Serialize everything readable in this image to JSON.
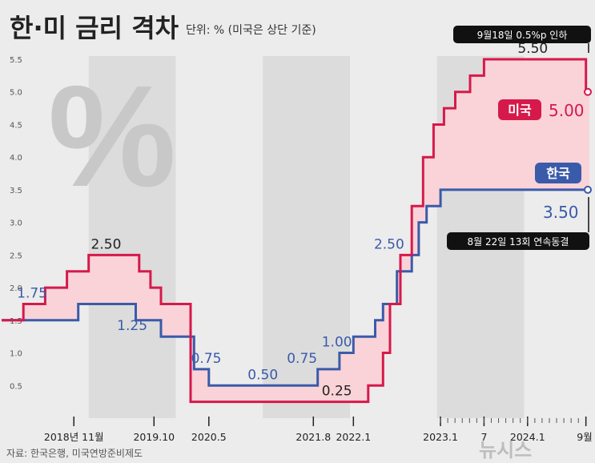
{
  "header": {
    "title": "한·미 금리 격차",
    "unit": "단위: % (미국은 상단 기준)"
  },
  "source": "자료: 한국은행, 미국연방준비제도",
  "watermark": "뉴시스",
  "colors": {
    "us": "#d6194b",
    "kr": "#3a5ba9",
    "gap_fill": "#f9d3d8",
    "band": "#dcdcdc",
    "background": "#ececec"
  },
  "chart_data": {
    "type": "line",
    "title": "한·미 금리 격차",
    "subtitle": "단위: % (미국은 상단 기준)",
    "ylim": [
      0,
      5.5
    ],
    "y_ticks": [
      "0.5",
      "1.0",
      "1.5",
      "2.0",
      "2.5",
      "3.0",
      "3.5",
      "4.0",
      "4.5",
      "5.0",
      "5.5"
    ],
    "x_tick_labels": [
      {
        "label": "2018년 11월",
        "x": 2018.83
      },
      {
        "label": "2019.10",
        "x": 2019.75
      },
      {
        "label": "2020.5",
        "x": 2020.38
      },
      {
        "label": "2021.8",
        "x": 2021.58
      },
      {
        "label": "2022.1",
        "x": 2022.04
      },
      {
        "label": "2023.1",
        "x": 2023.04
      },
      {
        "label": "7",
        "x": 2023.54
      },
      {
        "label": "2024.1",
        "x": 2024.04
      },
      {
        "label": "9월",
        "x": 2024.71
      }
    ],
    "series": [
      {
        "name": "미국",
        "step_points": [
          [
            2018.0,
            1.5
          ],
          [
            2018.25,
            1.75
          ],
          [
            2018.5,
            2.0
          ],
          [
            2018.75,
            2.25
          ],
          [
            2019.0,
            2.5
          ],
          [
            2019.58,
            2.25
          ],
          [
            2019.71,
            2.0
          ],
          [
            2019.83,
            1.75
          ],
          [
            2020.17,
            0.25
          ],
          [
            2022.21,
            0.5
          ],
          [
            2022.38,
            1.0
          ],
          [
            2022.46,
            1.75
          ],
          [
            2022.58,
            2.5
          ],
          [
            2022.71,
            3.25
          ],
          [
            2022.84,
            4.0
          ],
          [
            2022.96,
            4.5
          ],
          [
            2023.08,
            4.75
          ],
          [
            2023.21,
            5.0
          ],
          [
            2023.38,
            5.25
          ],
          [
            2023.54,
            5.5
          ],
          [
            2024.71,
            5.0
          ],
          [
            2024.75,
            5.0
          ]
        ],
        "labels": [
          {
            "text": "2.50",
            "x": 2019.2,
            "y": 2.5
          },
          {
            "text": "0.25",
            "x": 2021.85,
            "y": 0.25
          },
          {
            "text": "5.50",
            "x": 2024.1,
            "y": 5.5
          }
        ],
        "legend_label": "미국",
        "final_value": "5.00",
        "final_annotation": "9월18일 0.5%p 인하"
      },
      {
        "name": "한국",
        "step_points": [
          [
            2018.0,
            1.5
          ],
          [
            2018.88,
            1.75
          ],
          [
            2019.54,
            1.5
          ],
          [
            2019.83,
            1.25
          ],
          [
            2020.21,
            0.75
          ],
          [
            2020.38,
            0.5
          ],
          [
            2021.63,
            0.75
          ],
          [
            2021.88,
            1.0
          ],
          [
            2022.04,
            1.25
          ],
          [
            2022.29,
            1.5
          ],
          [
            2022.38,
            1.75
          ],
          [
            2022.54,
            2.25
          ],
          [
            2022.71,
            2.5
          ],
          [
            2022.79,
            3.0
          ],
          [
            2022.88,
            3.25
          ],
          [
            2023.04,
            3.5
          ],
          [
            2024.75,
            3.5
          ]
        ],
        "labels": [
          {
            "text": "1.75",
            "x": 2018.35,
            "y": 1.75
          },
          {
            "text": "1.25",
            "x": 2019.5,
            "y": 1.25
          },
          {
            "text": "0.75",
            "x": 2020.35,
            "y": 0.75
          },
          {
            "text": "0.50",
            "x": 2021.0,
            "y": 0.5
          },
          {
            "text": "0.75",
            "x": 2021.45,
            "y": 0.75
          },
          {
            "text": "1.00",
            "x": 2021.85,
            "y": 1.0
          },
          {
            "text": "2.50",
            "x": 2022.45,
            "y": 2.5
          }
        ],
        "legend_label": "한국",
        "final_value": "3.50",
        "final_annotation": "8월 22일 13회 연속동결"
      }
    ],
    "gap_fill": "between series (US above Korea)",
    "grid": false,
    "legend": "right"
  }
}
